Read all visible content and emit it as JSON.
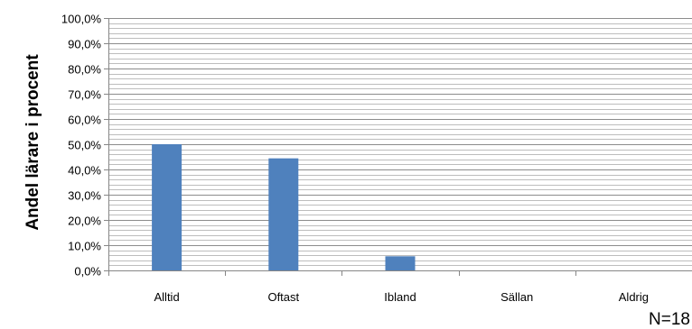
{
  "chart_data": {
    "type": "bar",
    "title": "",
    "xlabel": "",
    "ylabel": "Andel lärare i procent",
    "categories": [
      "Alltid",
      "Oftast",
      "Ibland",
      "Sällan",
      "Aldrig"
    ],
    "values": [
      50.0,
      44.4,
      5.6,
      0.0,
      0.0
    ],
    "ylim": [
      0,
      100
    ],
    "y_ticks": [
      "0,0%",
      "10,0%",
      "20,0%",
      "30,0%",
      "40,0%",
      "50,0%",
      "60,0%",
      "70,0%",
      "80,0%",
      "90,0%",
      "100,0%"
    ],
    "grid": true,
    "legend": "none",
    "bar_color": "#4F81BD"
  },
  "footnote": "N=18"
}
